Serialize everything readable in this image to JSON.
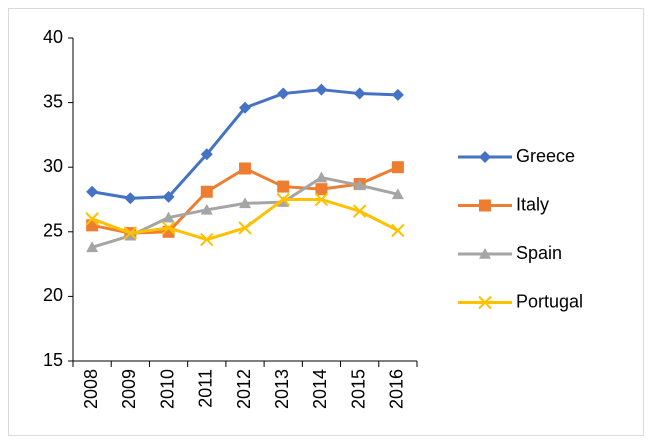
{
  "chart_data": {
    "type": "line",
    "categories": [
      "2008",
      "2009",
      "2010",
      "2011",
      "2012",
      "2013",
      "2014",
      "2015",
      "2016"
    ],
    "series": [
      {
        "name": "Greece",
        "color": "#4472c4",
        "marker": "diamond",
        "values": [
          28.1,
          27.6,
          27.7,
          31.0,
          34.6,
          35.7,
          36.0,
          35.7,
          35.6
        ]
      },
      {
        "name": "Italy",
        "color": "#ed7d31",
        "marker": "square",
        "values": [
          25.5,
          24.9,
          25.0,
          28.1,
          29.9,
          28.5,
          28.3,
          28.7,
          30.0
        ]
      },
      {
        "name": "Spain",
        "color": "#a5a5a5",
        "marker": "triangle",
        "values": [
          23.8,
          24.7,
          26.1,
          26.7,
          27.2,
          27.3,
          29.2,
          28.6,
          27.9
        ]
      },
      {
        "name": "Portugal",
        "color": "#ffc000",
        "marker": "x",
        "values": [
          26.0,
          24.9,
          25.3,
          24.4,
          25.3,
          27.5,
          27.5,
          26.6,
          25.1
        ]
      }
    ],
    "ylim": [
      15,
      40
    ],
    "yticks": [
      15,
      20,
      25,
      30,
      35,
      40
    ],
    "grid": false,
    "legend": "right"
  }
}
